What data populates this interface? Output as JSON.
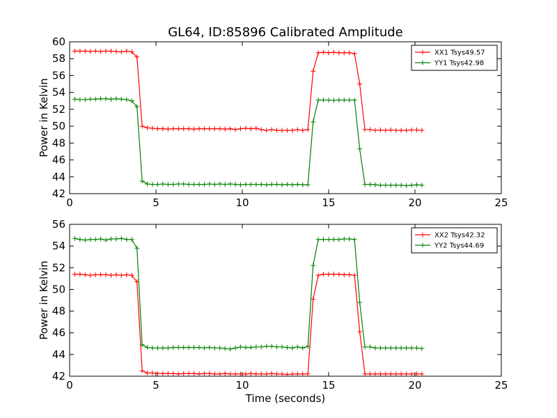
{
  "title": "GL64, ID:85896 Calibrated Amplitude",
  "chart_data": [
    {
      "type": "line",
      "ylabel": "Power in Kelvin",
      "xlabel": "",
      "xlim": [
        0,
        25
      ],
      "ylim": [
        42,
        60
      ],
      "xticks": [
        0,
        5,
        10,
        15,
        20,
        25
      ],
      "yticks": [
        42,
        44,
        46,
        48,
        50,
        52,
        54,
        56,
        58,
        60
      ],
      "legend_position": "top-right",
      "grid": false,
      "series": [
        {
          "name": "XX1 Tsys49.57",
          "color": "#ff0000",
          "x": [
            0.3,
            0.6,
            0.9,
            1.2,
            1.5,
            1.8,
            2.1,
            2.4,
            2.7,
            3.0,
            3.3,
            3.6,
            3.9,
            4.2,
            4.5,
            4.8,
            5.1,
            5.4,
            5.7,
            6.0,
            6.3,
            6.6,
            6.9,
            7.2,
            7.5,
            7.8,
            8.1,
            8.4,
            8.7,
            9.0,
            9.3,
            9.6,
            9.9,
            10.2,
            10.5,
            10.8,
            11.1,
            11.4,
            11.7,
            12.0,
            12.3,
            12.6,
            12.9,
            13.2,
            13.5,
            13.8,
            14.1,
            14.4,
            14.7,
            15.0,
            15.3,
            15.6,
            15.9,
            16.2,
            16.5,
            16.8,
            17.1,
            17.4,
            17.7,
            18.0,
            18.3,
            18.6,
            18.9,
            19.2,
            19.5,
            19.8,
            20.1,
            20.4
          ],
          "y": [
            58.9,
            58.9,
            58.9,
            58.85,
            58.9,
            58.85,
            58.9,
            58.9,
            58.85,
            58.8,
            58.9,
            58.8,
            58.2,
            50.0,
            49.8,
            49.75,
            49.7,
            49.7,
            49.65,
            49.7,
            49.7,
            49.7,
            49.7,
            49.65,
            49.7,
            49.7,
            49.7,
            49.7,
            49.7,
            49.65,
            49.7,
            49.6,
            49.7,
            49.75,
            49.7,
            49.75,
            49.6,
            49.5,
            49.6,
            49.5,
            49.5,
            49.5,
            49.5,
            49.6,
            49.5,
            49.6,
            56.5,
            58.7,
            58.75,
            58.7,
            58.75,
            58.7,
            58.7,
            58.7,
            58.6,
            55.0,
            49.6,
            49.6,
            49.5,
            49.55,
            49.5,
            49.55,
            49.5,
            49.5,
            49.5,
            49.55,
            49.55,
            49.5
          ]
        },
        {
          "name": "YY1 Tsys42.98",
          "color": "#008000",
          "x": [
            0.3,
            0.6,
            0.9,
            1.2,
            1.5,
            1.8,
            2.1,
            2.4,
            2.7,
            3.0,
            3.3,
            3.6,
            3.9,
            4.2,
            4.5,
            4.8,
            5.1,
            5.4,
            5.7,
            6.0,
            6.3,
            6.6,
            6.9,
            7.2,
            7.5,
            7.8,
            8.1,
            8.4,
            8.7,
            9.0,
            9.3,
            9.6,
            9.9,
            10.2,
            10.5,
            10.8,
            11.1,
            11.4,
            11.7,
            12.0,
            12.3,
            12.6,
            12.9,
            13.2,
            13.5,
            13.8,
            14.1,
            14.4,
            14.7,
            15.0,
            15.3,
            15.6,
            15.9,
            16.2,
            16.5,
            16.8,
            17.1,
            17.4,
            17.7,
            18.0,
            18.3,
            18.6,
            18.9,
            19.2,
            19.5,
            19.8,
            20.1,
            20.4
          ],
          "y": [
            53.2,
            53.15,
            53.15,
            53.2,
            53.2,
            53.25,
            53.25,
            53.2,
            53.25,
            53.2,
            53.15,
            53.0,
            52.3,
            43.5,
            43.15,
            43.1,
            43.1,
            43.15,
            43.1,
            43.1,
            43.15,
            43.15,
            43.1,
            43.1,
            43.1,
            43.1,
            43.15,
            43.1,
            43.15,
            43.1,
            43.15,
            43.1,
            43.05,
            43.1,
            43.1,
            43.1,
            43.1,
            43.05,
            43.1,
            43.1,
            43.05,
            43.1,
            43.05,
            43.1,
            43.05,
            43.05,
            50.5,
            53.1,
            53.1,
            53.1,
            53.05,
            53.1,
            53.1,
            53.1,
            53.1,
            47.3,
            43.1,
            43.1,
            43.05,
            43.0,
            43.0,
            43.0,
            43.0,
            43.0,
            42.95,
            43.0,
            43.05,
            43.0
          ]
        }
      ]
    },
    {
      "type": "line",
      "ylabel": "Power in Kelvin",
      "xlabel": "Time (seconds)",
      "xlim": [
        0,
        25
      ],
      "ylim": [
        42,
        56
      ],
      "xticks": [
        0,
        5,
        10,
        15,
        20,
        25
      ],
      "yticks": [
        42,
        44,
        46,
        48,
        50,
        52,
        54,
        56
      ],
      "legend_position": "top-right",
      "grid": false,
      "series": [
        {
          "name": "XX2 Tsys42.32",
          "color": "#ff0000",
          "x": [
            0.3,
            0.6,
            0.9,
            1.2,
            1.5,
            1.8,
            2.1,
            2.4,
            2.7,
            3.0,
            3.3,
            3.6,
            3.9,
            4.2,
            4.5,
            4.8,
            5.1,
            5.4,
            5.7,
            6.0,
            6.3,
            6.6,
            6.9,
            7.2,
            7.5,
            7.8,
            8.1,
            8.4,
            8.7,
            9.0,
            9.3,
            9.6,
            9.9,
            10.2,
            10.5,
            10.8,
            11.1,
            11.4,
            11.7,
            12.0,
            12.3,
            12.6,
            12.9,
            13.2,
            13.5,
            13.8,
            14.1,
            14.4,
            14.7,
            15.0,
            15.3,
            15.6,
            15.9,
            16.2,
            16.5,
            16.8,
            17.1,
            17.4,
            17.7,
            18.0,
            18.3,
            18.6,
            18.9,
            19.2,
            19.5,
            19.8,
            20.1,
            20.4
          ],
          "y": [
            51.4,
            51.4,
            51.35,
            51.3,
            51.35,
            51.35,
            51.35,
            51.3,
            51.35,
            51.3,
            51.35,
            51.3,
            50.7,
            42.5,
            42.3,
            42.3,
            42.25,
            42.25,
            42.25,
            42.25,
            42.2,
            42.25,
            42.25,
            42.25,
            42.2,
            42.25,
            42.25,
            42.2,
            42.2,
            42.25,
            42.2,
            42.2,
            42.2,
            42.2,
            42.25,
            42.2,
            42.2,
            42.2,
            42.25,
            42.2,
            42.2,
            42.15,
            42.2,
            42.2,
            42.2,
            42.2,
            49.1,
            51.3,
            51.4,
            51.4,
            51.4,
            51.4,
            51.35,
            51.35,
            51.3,
            46.1,
            42.2,
            42.2,
            42.2,
            42.2,
            42.2,
            42.2,
            42.2,
            42.2,
            42.2,
            42.2,
            42.2,
            42.2
          ]
        },
        {
          "name": "YY2 Tsys44.69",
          "color": "#008000",
          "x": [
            0.3,
            0.6,
            0.9,
            1.2,
            1.5,
            1.8,
            2.1,
            2.4,
            2.7,
            3.0,
            3.3,
            3.6,
            3.9,
            4.2,
            4.5,
            4.8,
            5.1,
            5.4,
            5.7,
            6.0,
            6.3,
            6.6,
            6.9,
            7.2,
            7.5,
            7.8,
            8.1,
            8.4,
            8.7,
            9.0,
            9.3,
            9.6,
            9.9,
            10.2,
            10.5,
            10.8,
            11.1,
            11.4,
            11.7,
            12.0,
            12.3,
            12.6,
            12.9,
            13.2,
            13.5,
            13.8,
            14.1,
            14.4,
            14.7,
            15.0,
            15.3,
            15.6,
            15.9,
            16.2,
            16.5,
            16.8,
            17.1,
            17.4,
            17.7,
            18.0,
            18.3,
            18.6,
            18.9,
            19.2,
            19.5,
            19.8,
            20.1,
            20.4
          ],
          "y": [
            54.7,
            54.6,
            54.55,
            54.6,
            54.6,
            54.65,
            54.55,
            54.65,
            54.65,
            54.7,
            54.6,
            54.6,
            53.8,
            44.9,
            44.65,
            44.6,
            44.6,
            44.6,
            44.6,
            44.65,
            44.65,
            44.65,
            44.65,
            44.65,
            44.65,
            44.6,
            44.65,
            44.6,
            44.6,
            44.55,
            44.5,
            44.6,
            44.7,
            44.65,
            44.65,
            44.7,
            44.7,
            44.75,
            44.75,
            44.7,
            44.7,
            44.65,
            44.6,
            44.7,
            44.6,
            44.75,
            52.2,
            54.6,
            54.6,
            54.6,
            54.6,
            54.6,
            54.65,
            54.65,
            54.6,
            48.8,
            44.7,
            44.7,
            44.6,
            44.6,
            44.6,
            44.6,
            44.6,
            44.6,
            44.6,
            44.6,
            44.6,
            44.55
          ]
        }
      ]
    }
  ]
}
